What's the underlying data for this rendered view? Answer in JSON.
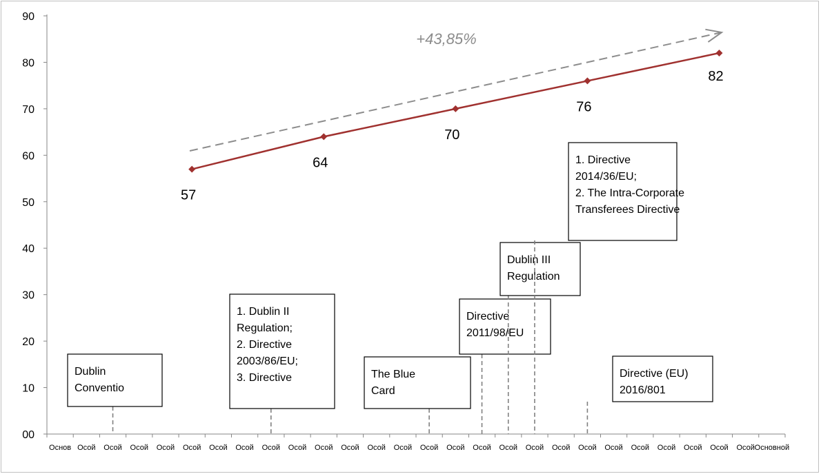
{
  "chart_data": {
    "type": "line",
    "title": "",
    "xlabel": "",
    "ylabel": "",
    "ylim": [
      0,
      90
    ],
    "yticks": [
      "00",
      "10",
      "20",
      "30",
      "40",
      "50",
      "60",
      "70",
      "80",
      "90"
    ],
    "grid": false,
    "x_tick_labels": [
      "Основ",
      "Осой",
      "Осой",
      "Осой",
      "Осой",
      "Осой",
      "Осой",
      "Осой",
      "Осой",
      "Осой",
      "Осой",
      "Осой",
      "Осой",
      "Осой",
      "Осой",
      "Осой",
      "Осой",
      "Осой",
      "Осой",
      "Осой",
      "Осой",
      "Осой",
      "Осой",
      "Осой",
      "Осой",
      "Осой",
      "Осой",
      "Основной"
    ],
    "series": [
      {
        "color": "#a0312f",
        "points": [
          {
            "x_index": 5,
            "value": 57,
            "label": "57"
          },
          {
            "x_index": 10,
            "value": 64,
            "label": "64"
          },
          {
            "x_index": 15,
            "value": 70,
            "label": "70"
          },
          {
            "x_index": 20,
            "value": 76,
            "label": "76"
          },
          {
            "x_index": 25,
            "value": 82,
            "label": "82"
          }
        ]
      }
    ],
    "trend_annotation": {
      "text": "+43,85%",
      "color": "#8c8c8c"
    },
    "event_boxes": [
      {
        "lines": [
          "Dublin",
          "Conventio"
        ],
        "x_index": 2
      },
      {
        "lines": [
          "1. Dublin II",
          "Regulation;",
          "2. Directive",
          "2003/86/EU;",
          "3. Directive"
        ],
        "x_index": 8
      },
      {
        "lines": [
          "The Blue",
          "Card"
        ],
        "x_index": 14
      },
      {
        "lines": [
          "Directive",
          "2011/98/EU"
        ],
        "x_index": 16
      },
      {
        "lines": [
          "Dublin III",
          "Regulation"
        ],
        "x_index": 17
      },
      {
        "lines": [
          "1. Directive",
          "2014/36/EU;",
          "2. The Intra-Corporate",
          "Transferees Directive"
        ],
        "x_index": 18
      },
      {
        "lines": [
          "Directive (EU)",
          "2016/801"
        ],
        "x_index": 20
      }
    ]
  }
}
